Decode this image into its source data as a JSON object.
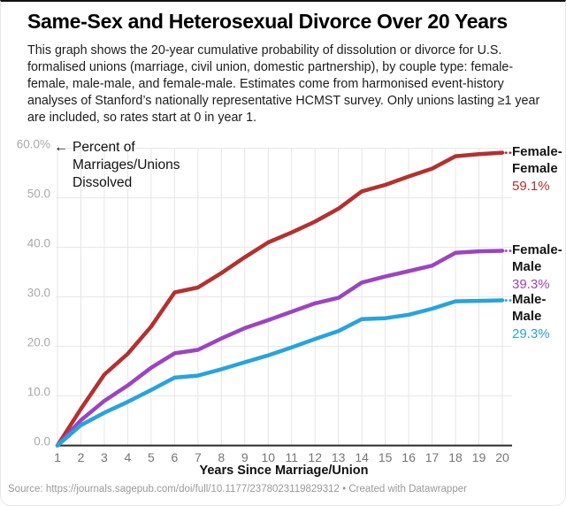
{
  "header": {
    "title": "Same-Sex and Heterosexual Divorce Over 20 Years",
    "description": "This graph shows the 20-year cumulative probability of dissolution or divorce for U.S. formalised unions (marriage, civil union, domestic partnership), by couple type: female-female, male-male, and female-male. Estimates come from harmonised event-history analyses of Stanford’s nationally representative HCMST survey. Only unions lasting ≥1 year are included, so rates start at 0 in year 1."
  },
  "icons": {
    "left_arrow": "←"
  },
  "chart_data": {
    "type": "line",
    "title": "Same-Sex and Heterosexual Divorce Over 20 Years",
    "xlabel": "Years Since Marriage/Union",
    "ylabel_annotation": "Percent of Marriages/Unions Dissolved",
    "x": [
      1,
      2,
      3,
      4,
      5,
      6,
      7,
      8,
      9,
      10,
      11,
      12,
      13,
      14,
      15,
      16,
      17,
      18,
      19,
      20
    ],
    "y_tick_labels": [
      "0.0",
      "10.0",
      "20.0",
      "30.0",
      "40.0",
      "50.0",
      "60.0%"
    ],
    "ylim": [
      0,
      60
    ],
    "grid": "on",
    "legend_position": "right",
    "series": [
      {
        "name": "Female-Female",
        "end_label": "59.1%",
        "color": "#b5302f",
        "values": [
          0,
          7.4,
          14.3,
          18.5,
          24.0,
          30.9,
          31.9,
          34.8,
          38.0,
          41.0,
          43.0,
          45.2,
          47.8,
          51.3,
          52.6,
          54.3,
          55.9,
          58.4,
          58.8,
          59.1
        ]
      },
      {
        "name": "Female-Male",
        "end_label": "39.3%",
        "color": "#9c44c0",
        "values": [
          0,
          5.1,
          9.0,
          12.1,
          15.7,
          18.6,
          19.3,
          21.6,
          23.7,
          25.3,
          27.0,
          28.7,
          29.8,
          32.9,
          34.1,
          35.2,
          36.3,
          38.9,
          39.2,
          39.3
        ]
      },
      {
        "name": "Male-Male",
        "end_label": "29.3%",
        "color": "#28a3dc",
        "values": [
          0,
          4.1,
          6.6,
          8.8,
          11.2,
          13.7,
          14.1,
          15.4,
          16.8,
          18.2,
          19.8,
          21.5,
          23.1,
          25.5,
          25.7,
          26.4,
          27.6,
          29.1,
          29.2,
          29.3
        ]
      }
    ],
    "colors": {
      "grid": "#e6e6e6",
      "axis": "#2b2b2b",
      "y_ticks": "#a9a9a9",
      "x_ticks": "#757575"
    }
  },
  "footer": {
    "source_label": "Source:",
    "source_url": "https://journals.sagepub.com/doi/full/10.1177/2378023119829312",
    "separator": "•",
    "credit": "Created with Datawrapper"
  }
}
